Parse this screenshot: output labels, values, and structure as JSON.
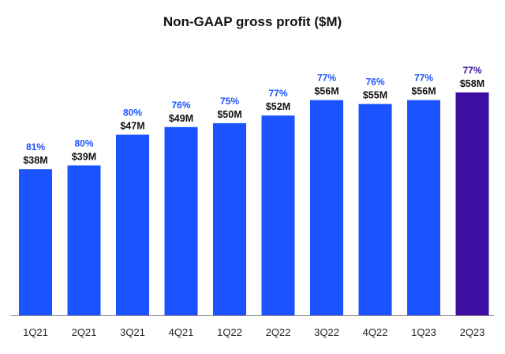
{
  "chart_data": {
    "type": "bar",
    "title": "Non-GAAP gross profit ($M)",
    "categories": [
      "1Q21",
      "2Q21",
      "3Q21",
      "4Q21",
      "1Q22",
      "2Q22",
      "3Q22",
      "4Q22",
      "1Q23",
      "2Q23"
    ],
    "values": [
      38,
      39,
      47,
      49,
      50,
      52,
      56,
      55,
      56,
      58
    ],
    "value_labels": [
      "$38M",
      "$39M",
      "$47M",
      "$49M",
      "$50M",
      "$52M",
      "$56M",
      "$55M",
      "$56M",
      "$58M"
    ],
    "margin_labels": [
      "81%",
      "80%",
      "80%",
      "76%",
      "75%",
      "77%",
      "77%",
      "76%",
      "77%",
      "77%"
    ],
    "ylim": [
      0,
      58
    ],
    "grid": false,
    "legend": "none",
    "xlabel": "",
    "ylabel": ""
  },
  "colors": {
    "bar": "#1a53ff",
    "highlight_bar": "#3d0fa0",
    "margin_label": "#1a53ff",
    "highlight_margin_label": "#3d0fa0",
    "value_label": "#111111",
    "axis": "#888888",
    "tick_label": "#222222"
  },
  "highlight_index": 9
}
